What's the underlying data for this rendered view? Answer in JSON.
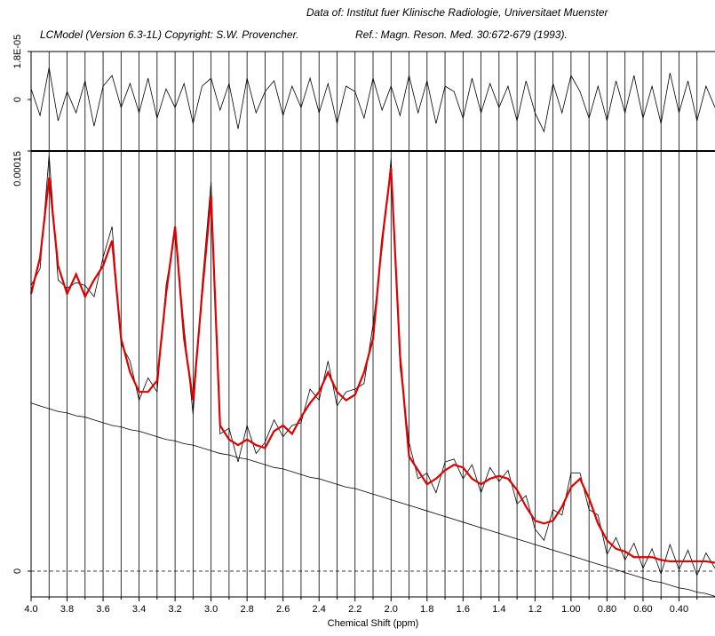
{
  "header": {
    "data_source": "Data of: Institut fuer Klinische Radiologie, Universitaet Muenster",
    "software": "LCModel (Version 6.3-1L) Copyright: S.W. Provencher.",
    "reference": "Ref.: Magn. Reson. Med. 30:672-679 (1993)."
  },
  "chart_data": [
    {
      "type": "line",
      "x": [
        4.0,
        3.95,
        3.9,
        3.85,
        3.8,
        3.75,
        3.7,
        3.65,
        3.6,
        3.55,
        3.5,
        3.45,
        3.4,
        3.35,
        3.3,
        3.25,
        3.2,
        3.15,
        3.1,
        3.05,
        3.0,
        2.95,
        2.9,
        2.85,
        2.8,
        2.75,
        2.7,
        2.65,
        2.6,
        2.55,
        2.5,
        2.45,
        2.4,
        2.35,
        2.3,
        2.25,
        2.2,
        2.15,
        2.1,
        2.05,
        2.0,
        1.95,
        1.9,
        1.85,
        1.8,
        1.75,
        1.7,
        1.65,
        1.6,
        1.55,
        1.5,
        1.45,
        1.4,
        1.35,
        1.3,
        1.25,
        1.2,
        1.15,
        1.1,
        1.05,
        1.0,
        0.95,
        0.9,
        0.85,
        0.8,
        0.75,
        0.7,
        0.65,
        0.6,
        0.55,
        0.5,
        0.45,
        0.4,
        0.35,
        0.3,
        0.25,
        0.2
      ],
      "xlim": [
        4.0,
        0.2
      ],
      "ylim": [
        -1.93e-05,
        1.8e-05
      ],
      "yticks": [
        0,
        {
          "value": 1.8e-05,
          "label": "1.8E-05"
        }
      ],
      "series": [
        {
          "color": "#000000",
          "values": [
            4e-06,
            -6e-06,
            1.2e-05,
            -8e-06,
            3e-06,
            -5e-06,
            7e-06,
            -1e-05,
            5e-06,
            9e-06,
            -3e-06,
            6e-06,
            -5e-06,
            8e-06,
            -7e-06,
            4e-06,
            -3e-06,
            6e-06,
            -9e-06,
            5e-06,
            8e-06,
            -4e-06,
            6e-06,
            -1.1e-05,
            8e-06,
            -5e-06,
            3e-06,
            7e-06,
            -6e-06,
            5e-06,
            -3e-06,
            8e-06,
            -5e-06,
            6e-06,
            -9e-06,
            5e-06,
            3e-06,
            -7e-06,
            8e-06,
            -4e-06,
            5e-06,
            -6e-06,
            9e-06,
            -5e-06,
            7e-06,
            -9e-06,
            5e-06,
            3e-06,
            -7e-06,
            8e-06,
            -5e-06,
            6e-06,
            -3e-06,
            5e-06,
            -8e-06,
            7e-06,
            -5e-06,
            -1.2e-05,
            6e-06,
            -5e-06,
            9e-06,
            3e-06,
            -7e-06,
            5e-06,
            -8e-06,
            7e-06,
            -5e-06,
            9e-06,
            -7e-06,
            5e-06,
            -9e-06,
            1e-05,
            -5e-06,
            7e-06,
            -8e-06,
            5e-06,
            -3e-06
          ]
        }
      ]
    },
    {
      "type": "line",
      "x": [
        4.0,
        3.95,
        3.9,
        3.85,
        3.8,
        3.75,
        3.7,
        3.65,
        3.6,
        3.55,
        3.5,
        3.45,
        3.4,
        3.35,
        3.3,
        3.25,
        3.2,
        3.15,
        3.1,
        3.05,
        3.0,
        2.95,
        2.9,
        2.85,
        2.8,
        2.75,
        2.7,
        2.65,
        2.6,
        2.55,
        2.5,
        2.45,
        2.4,
        2.35,
        2.3,
        2.25,
        2.2,
        2.15,
        2.1,
        2.05,
        2.0,
        1.95,
        1.9,
        1.85,
        1.8,
        1.75,
        1.7,
        1.65,
        1.6,
        1.55,
        1.5,
        1.45,
        1.4,
        1.35,
        1.3,
        1.25,
        1.2,
        1.15,
        1.1,
        1.05,
        1.0,
        0.95,
        0.9,
        0.85,
        0.8,
        0.75,
        0.7,
        0.65,
        0.6,
        0.55,
        0.5,
        0.45,
        0.4,
        0.35,
        0.3,
        0.25,
        0.2
      ],
      "xlabel": "Chemical Shift (ppm)",
      "xlim": [
        4.0,
        0.2
      ],
      "xticks": [
        {
          "value": 4.0,
          "label": "4.0"
        },
        3.8,
        3.6,
        3.4,
        3.2,
        {
          "value": 3.0,
          "label": "3.0"
        },
        2.8,
        2.6,
        2.4,
        2.2,
        {
          "value": 2.0,
          "label": "2.0"
        },
        1.8,
        1.6,
        1.4,
        1.2,
        {
          "value": 1.0,
          "label": "1.00"
        },
        {
          "value": 0.8,
          "label": "0.80"
        },
        {
          "value": 0.6,
          "label": "0.60"
        },
        {
          "value": 0.4,
          "label": "0.40"
        }
      ],
      "xminorticks": [
        3.9,
        3.7,
        3.5,
        3.3,
        3.1,
        2.9,
        2.7,
        2.5,
        2.3,
        2.1,
        1.9,
        1.7,
        1.5,
        1.3,
        1.1,
        0.9,
        0.7,
        0.5,
        0.3
      ],
      "ylim": [
        -9.2e-06,
        0.00015
      ],
      "yticks": [
        0,
        0.00015
      ],
      "grid": true,
      "series": [
        {
          "color": "#000000",
          "values": [
            0.000102,
            0.000108,
            0.0001485,
            0.000104,
            0.000101,
            0.000103,
            0.000102,
            9.8e-05,
            0.000112,
            0.000123,
            8.1e-05,
            7.5e-05,
            6.1e-05,
            6.9e-05,
            6.4e-05,
            0.000102,
            0.000121,
            8.7e-05,
            5.6e-05,
            0.000102,
            0.000139,
            4.9e-05,
            5.1e-05,
            3.9e-05,
            5.2e-05,
            4.2e-05,
            4.6e-05,
            5.4e-05,
            4.8e-05,
            5.2e-05,
            5.3e-05,
            6.5e-05,
            6.1e-05,
            7.5e-05,
            5.9e-05,
            6.4e-05,
            6.5e-05,
            6.7e-05,
            8.8e-05,
            0.000115,
            0.000147,
            7.3e-05,
            4.6e-05,
            3.3e-05,
            3.5e-05,
            2.8e-05,
            3.9e-05,
            4e-05,
            3.3e-05,
            3.8e-05,
            2.8e-05,
            3.7e-05,
            3.2e-05,
            3.6e-05,
            2.4e-05,
            2.7e-05,
            1.5e-05,
            1.1e-05,
            2.2e-05,
            2e-05,
            3.5e-05,
            3.5e-05,
            2.2e-05,
            2e-05,
            6e-06,
            1.2e-05,
            4e-06,
            1e-05,
            1e-06,
            8e-06,
            -1e-06,
            9.5e-06,
            5e-07,
            7.5e-06,
            -1.5e-06,
            6.5e-06,
            1e-06
          ]
        },
        {
          "color": "#e00000",
          "values": [
            9.9e-05,
            0.000112,
            0.0001405,
            0.000109,
            9.9e-05,
            0.000106,
            9.8e-05,
            0.000104,
            0.000109,
            0.000118,
            8.3e-05,
            7.1e-05,
            6.4e-05,
            6.4e-05,
            6.8e-05,
            9.9e-05,
            0.000123,
            8.3e-05,
            6.1e-05,
            9.9e-05,
            0.000134,
            5.2e-05,
            4.7e-05,
            4.5e-05,
            4.7e-05,
            4.5e-05,
            4.4e-05,
            5e-05,
            5.2e-05,
            4.9e-05,
            5.5e-05,
            6e-05,
            6.4e-05,
            7.1e-05,
            6.4e-05,
            6.1e-05,
            6.3e-05,
            7.1e-05,
            8.3e-05,
            0.000118,
            0.000144,
            7.7e-05,
            4.1e-05,
            3.6e-05,
            3.1e-05,
            3.3e-05,
            3.6e-05,
            3.8e-05,
            3.7e-05,
            3.3e-05,
            3.1e-05,
            3.3e-05,
            3.4e-05,
            3.3e-05,
            2.9e-05,
            2.3e-05,
            1.8e-05,
            1.7e-05,
            1.8e-05,
            2.3e-05,
            3e-05,
            3.3e-05,
            2.6e-05,
            1.7e-05,
            1.1e-05,
            8e-06,
            7e-06,
            5e-06,
            5e-06,
            5e-06,
            4e-06,
            3.5e-06,
            3.5e-06,
            3.5e-06,
            3.5e-06,
            3.5e-06,
            3e-06
          ]
        },
        {
          "color": "#000000",
          "values": [
            6e-05,
            5.9e-05,
            5.8e-05,
            5.7e-05,
            5.65e-05,
            5.55e-05,
            5.5e-05,
            5.4e-05,
            5.3e-05,
            5.2e-05,
            5.15e-05,
            5.05e-05,
            5e-05,
            4.9e-05,
            4.8e-05,
            4.7e-05,
            4.65e-05,
            4.55e-05,
            4.5e-05,
            4.4e-05,
            4.3e-05,
            4.2e-05,
            4.15e-05,
            4.05e-05,
            4e-05,
            3.9e-05,
            3.8e-05,
            3.7e-05,
            3.65e-05,
            3.55e-05,
            3.45e-05,
            3.35e-05,
            3.3e-05,
            3.2e-05,
            3.1e-05,
            3e-05,
            2.95e-05,
            2.85e-05,
            2.75e-05,
            2.65e-05,
            2.55e-05,
            2.45e-05,
            2.35e-05,
            2.25e-05,
            2.15e-05,
            2.05e-05,
            1.95e-05,
            1.85e-05,
            1.75e-05,
            1.65e-05,
            1.55e-05,
            1.45e-05,
            1.35e-05,
            1.25e-05,
            1.15e-05,
            1.05e-05,
            9.5e-06,
            8.5e-06,
            7.5e-06,
            6.5e-06,
            5.5e-06,
            4.5e-06,
            3.5e-06,
            2.5e-06,
            1.5e-06,
            5e-07,
            -5e-07,
            -1.5e-06,
            -2.5e-06,
            -3.5e-06,
            -4e-06,
            -5e-06,
            -6e-06,
            -6.5e-06,
            -7.5e-06,
            -8e-06,
            -9e-06
          ]
        }
      ]
    }
  ]
}
